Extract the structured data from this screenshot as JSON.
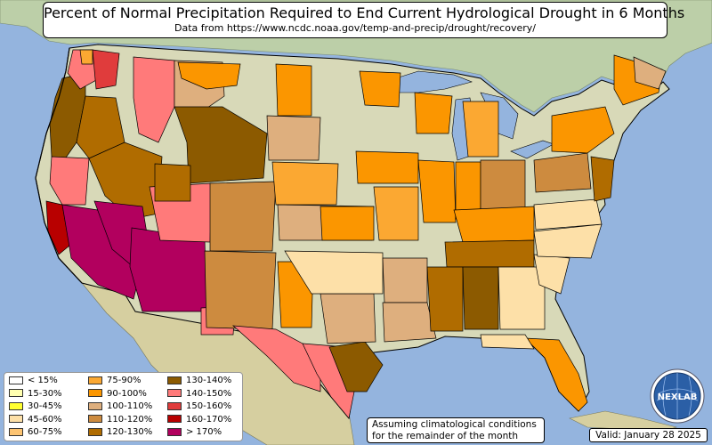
{
  "title": "Percent of Normal Precipitation Required to End Current Hydrological Drought in 6 Months",
  "subtitle": "Data from https://www.ncdc.noaa.gov/temp-and-precip/drought/recovery/",
  "legend": [
    {
      "label": "< 15%",
      "color": "#ffffff"
    },
    {
      "label": "15-30%",
      "color": "#ffffb0"
    },
    {
      "label": "30-45%",
      "color": "#ffff30"
    },
    {
      "label": "45-60%",
      "color": "#fde0a8"
    },
    {
      "label": "60-75%",
      "color": "#fdc472"
    },
    {
      "label": "75-90%",
      "color": "#fba832"
    },
    {
      "label": "90-100%",
      "color": "#fb9600"
    },
    {
      "label": "100-110%",
      "color": "#deaf7e"
    },
    {
      "label": "110-120%",
      "color": "#cd8b3f"
    },
    {
      "label": "120-130%",
      "color": "#b06c00"
    },
    {
      "label": "130-140%",
      "color": "#8c5a00"
    },
    {
      "label": "140-150%",
      "color": "#ff7a7a"
    },
    {
      "label": "150-160%",
      "color": "#e03c3c"
    },
    {
      "label": "160-170%",
      "color": "#b80000"
    },
    {
      "label": "> 170%",
      "color": "#b2005e"
    }
  ],
  "note_line1": "Assuming climatological conditions",
  "note_line2": "for the remainder of the month",
  "valid": "Valid: January 28 2025",
  "logo_text": "NEXLAB",
  "colors": {
    "ocean": "#94b4de",
    "land": "#d8d9b8",
    "canada": "#bccfa8",
    "mexico": "#d6cfa0",
    "border": "#000000"
  }
}
